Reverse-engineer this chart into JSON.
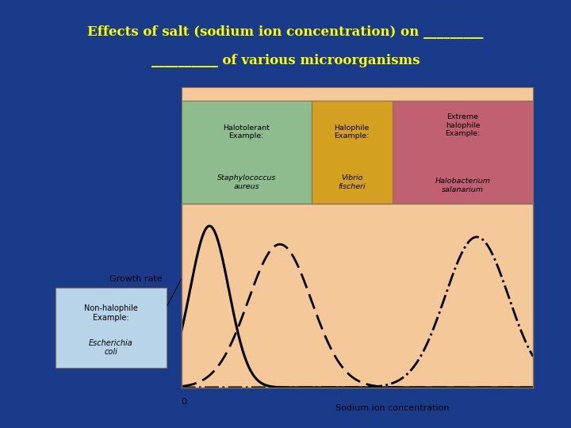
{
  "title_line1": "Effects of salt (sodium ion concentration) on _________",
  "title_line2": "__________ of various microorganisms",
  "title_color": "#FFFF00",
  "bg_color": "#1a3a8a",
  "outer_bg": "#b8d4e8",
  "chart_bg": "#F5C89A",
  "header_top_bg": "#F5C89A",
  "header_colors": {
    "halotolerant": "#8FBC8F",
    "halophile": "#D4A020",
    "extreme": "#C06070"
  },
  "box_border": "#8B7355",
  "ylabel": "Growth rate",
  "xlabel": "Sodium ion concentration",
  "x_zero_label": "0"
}
